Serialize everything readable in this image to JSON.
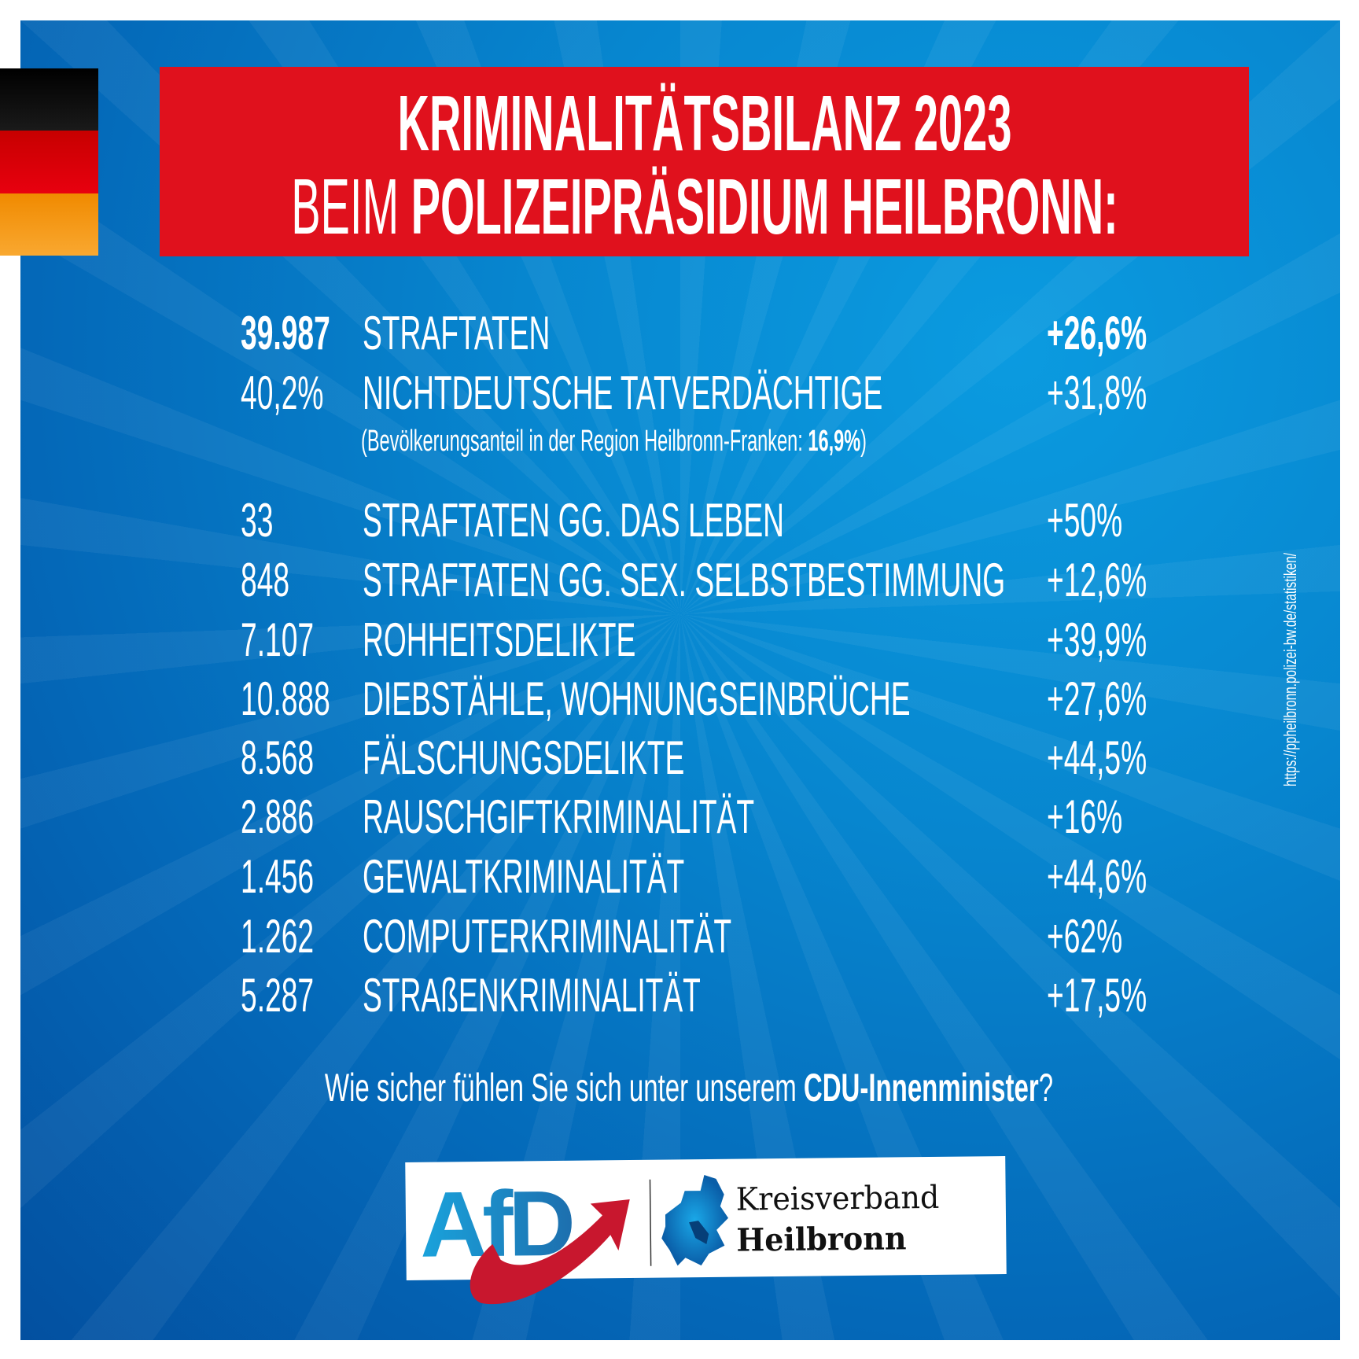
{
  "header": {
    "line1": "KRIMINALITÄTSBILANZ 2023",
    "line2_light": "BEIM ",
    "line2_bold": "POLIZEIPRÄSIDIUM HEILBRONN:"
  },
  "flag_colors": [
    "#000000",
    "#dd0000",
    "#f59a10"
  ],
  "accent_red": "#e0111d",
  "rows": [
    {
      "number": "39.987",
      "label": "STRAFTATEN",
      "change": "+26,6%",
      "bold_number": true
    },
    {
      "number": "40,2%",
      "label": "NICHTDEUTSCHE TATVERDÄCHTIGE",
      "change": "+31,8%"
    },
    {
      "number": "33",
      "label": "STRAFTATEN GG. DAS LEBEN",
      "change": "+50%"
    },
    {
      "number": "848",
      "label": "STRAFTATEN GG. SEX. SELBSTBESTIMMUNG",
      "change": "+12,6%"
    },
    {
      "number": "7.107",
      "label": "ROHHEITSDELIKTE",
      "change": "+39,9%"
    },
    {
      "number": "10.888",
      "label": "DIEBSTÄHLE, WOHNUNGSEINBRÜCHE",
      "change": "+27,6%"
    },
    {
      "number": "8.568",
      "label": "FÄLSCHUNGSDELIKTE",
      "change": "+44,5%"
    },
    {
      "number": "2.886",
      "label": "RAUSCHGIFTKRIMINALITÄT",
      "change": "+16%"
    },
    {
      "number": "1.456",
      "label": "GEWALTKRIMINALITÄT",
      "change": "+44,6%"
    },
    {
      "number": "1.262",
      "label": "COMPUTERKRIMINALITÄT",
      "change": "+62%"
    },
    {
      "number": "5.287",
      "label": "STRAßENKRIMINALITÄT",
      "change": "+17,5%"
    }
  ],
  "note": {
    "prefix": "(Bevölkerungsanteil in der Region Heilbronn-Franken: ",
    "value": "16,9%",
    "suffix": ")"
  },
  "question": {
    "prefix": "Wie sicher fühlen Sie sich unter unserem ",
    "bold": "CDU-Innenminister",
    "suffix": "?"
  },
  "source_url": "https://ppheilbronn.polizei-bw.de/statistiken/",
  "logo": {
    "party": "AfD",
    "line1": "Kreisverband",
    "line2": "Heilbronn"
  }
}
